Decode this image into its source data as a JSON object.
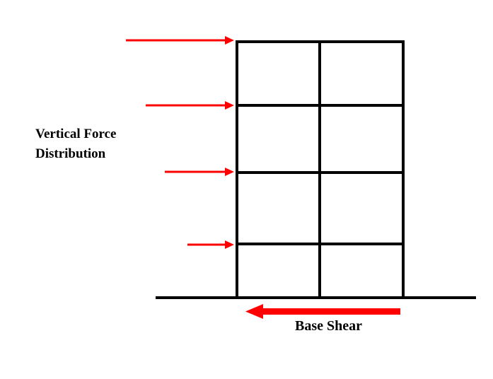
{
  "labels": {
    "vertical_force_line1": "Vertical Force",
    "vertical_force_line2": "Distribution",
    "base_shear": "Base Shear"
  },
  "colors": {
    "frame": "#000000",
    "arrow": "#ff0000"
  },
  "frame": {
    "stories": 4,
    "bays": 2
  }
}
